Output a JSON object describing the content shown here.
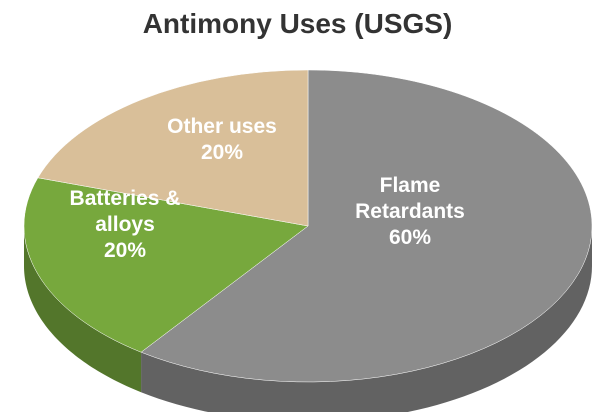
{
  "chart_data": {
    "type": "pie",
    "title": "Antimony Uses (USGS)",
    "categories": [
      "Flame Retardants",
      "Batteries & alloys",
      "Other uses"
    ],
    "values": [
      60,
      20,
      20
    ],
    "value_labels": [
      "60%",
      "20%",
      "20%"
    ],
    "colors": [
      "#8c8c8c",
      "#77a83d",
      "#d9bf99"
    ]
  }
}
